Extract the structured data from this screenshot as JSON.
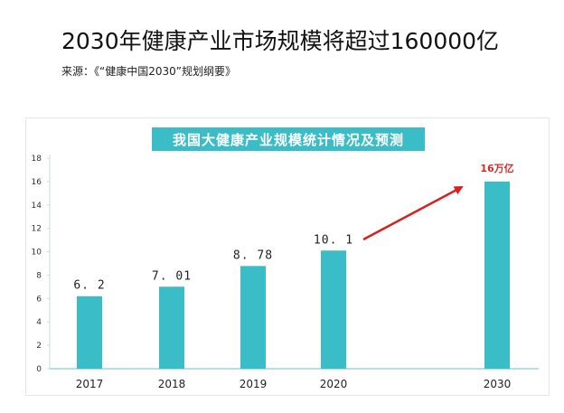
{
  "headline": "2030年健康产业市场规模将超过160000亿",
  "source": "来源：《“健康中国2030”规划纲要》",
  "chart_data": {
    "type": "bar",
    "title": "我国大健康产业规模统计情况及预测",
    "categories": [
      "2017",
      "2018",
      "2019",
      "2020",
      "2030"
    ],
    "values": [
      6.2,
      7.01,
      8.78,
      10.1,
      16
    ],
    "data_labels": [
      "6. 2",
      "7. 01",
      "8. 78",
      "10. 1",
      ""
    ],
    "ylim": [
      0,
      18
    ],
    "yticks": [
      0,
      2,
      4,
      6,
      8,
      10,
      12,
      14,
      16,
      18
    ],
    "annotation": "16万亿",
    "grid": false,
    "bar_color": "#3bbdc7",
    "arrow_color": "#d92020"
  }
}
